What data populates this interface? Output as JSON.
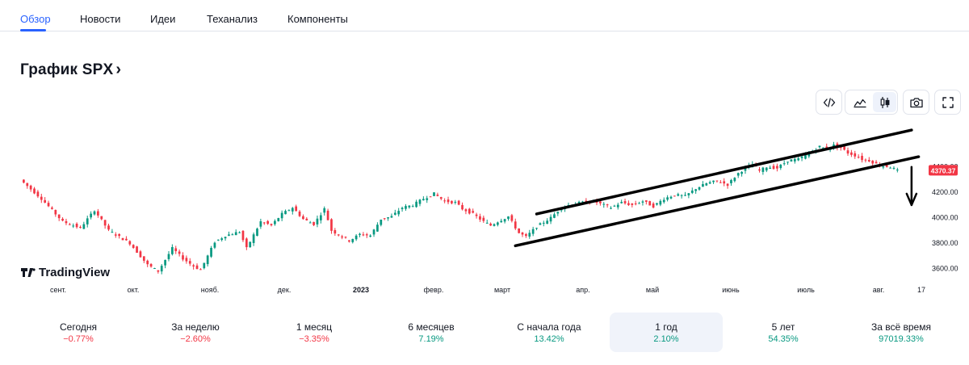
{
  "tabs": [
    {
      "label": "Обзор",
      "active": true
    },
    {
      "label": "Новости",
      "active": false
    },
    {
      "label": "Идеи",
      "active": false
    },
    {
      "label": "Теханализ",
      "active": false
    },
    {
      "label": "Компоненты",
      "active": false
    }
  ],
  "title": "График SPX",
  "title_chevron": "›",
  "toolbar": {
    "icons": [
      "embed-code-icon",
      "area-chart-icon",
      "candles-icon",
      "camera-icon",
      "fullscreen-icon"
    ],
    "active": "candles-icon"
  },
  "brand": "TradingView",
  "chart_data": {
    "type": "candlestick",
    "symbol": "SPX",
    "x_ticks": [
      "сент.",
      "окт.",
      "нояб.",
      "дек.",
      "2023",
      "февр.",
      "март",
      "апр.",
      "май",
      "июнь",
      "июль",
      "авг.",
      "17"
    ],
    "y_ticks": [
      "4400.00",
      "4200.00",
      "4000.00",
      "3800.00",
      "3600.00"
    ],
    "ylim": [
      3490,
      4760
    ],
    "last_price": "4370.37",
    "last_price_value": 4370.37,
    "close_path": [
      [
        0,
        4300
      ],
      [
        6,
        4150
      ],
      [
        12,
        3970
      ],
      [
        17,
        3920
      ],
      [
        21,
        4060
      ],
      [
        25,
        3900
      ],
      [
        31,
        3800
      ],
      [
        36,
        3630
      ],
      [
        39,
        3580
      ],
      [
        43,
        3760
      ],
      [
        46,
        3680
      ],
      [
        49,
        3620
      ],
      [
        51,
        3590
      ],
      [
        55,
        3810
      ],
      [
        58,
        3860
      ],
      [
        62,
        3890
      ],
      [
        64,
        3760
      ],
      [
        68,
        3970
      ],
      [
        71,
        3940
      ],
      [
        74,
        4030
      ],
      [
        77,
        4080
      ],
      [
        80,
        3990
      ],
      [
        83,
        3950
      ],
      [
        86,
        4070
      ],
      [
        88,
        3900
      ],
      [
        91,
        3850
      ],
      [
        93,
        3820
      ],
      [
        96,
        3870
      ],
      [
        99,
        3860
      ],
      [
        102,
        3990
      ],
      [
        105,
        4010
      ],
      [
        108,
        4080
      ],
      [
        111,
        4100
      ],
      [
        114,
        4150
      ],
      [
        117,
        4190
      ],
      [
        120,
        4130
      ],
      [
        123,
        4120
      ],
      [
        125,
        4070
      ],
      [
        128,
        4030
      ],
      [
        130,
        3990
      ],
      [
        131,
        3970
      ],
      [
        133,
        3940
      ],
      [
        135,
        3970
      ],
      [
        138,
        4010
      ],
      [
        141,
        3880
      ],
      [
        143,
        3850
      ],
      [
        146,
        3930
      ],
      [
        150,
        4000
      ],
      [
        153,
        4080
      ],
      [
        156,
        4110
      ],
      [
        159,
        4120
      ],
      [
        162,
        4130
      ],
      [
        164,
        4110
      ],
      [
        167,
        4080
      ],
      [
        170,
        4120
      ],
      [
        173,
        4100
      ],
      [
        176,
        4130
      ],
      [
        179,
        4090
      ],
      [
        182,
        4150
      ],
      [
        185,
        4180
      ],
      [
        188,
        4170
      ],
      [
        191,
        4230
      ],
      [
        194,
        4270
      ],
      [
        197,
        4290
      ],
      [
        200,
        4260
      ],
      [
        203,
        4350
      ],
      [
        205,
        4390
      ],
      [
        207,
        4420
      ],
      [
        209,
        4370
      ],
      [
        211,
        4400
      ],
      [
        214,
        4390
      ],
      [
        217,
        4450
      ],
      [
        220,
        4460
      ],
      [
        223,
        4510
      ],
      [
        226,
        4560
      ],
      [
        228,
        4540
      ],
      [
        230,
        4570
      ],
      [
        232,
        4550
      ],
      [
        234,
        4510
      ],
      [
        236,
        4490
      ],
      [
        238,
        4460
      ],
      [
        240,
        4450
      ],
      [
        243,
        4410
      ],
      [
        246,
        4400
      ],
      [
        248,
        4370
      ]
    ],
    "channel_upper": [
      [
        146,
        4030
      ],
      [
        252,
        4690
      ]
    ],
    "channel_lower": [
      [
        140,
        3780
      ],
      [
        254,
        4480
      ]
    ],
    "arrow": {
      "from": [
        252,
        4400
      ],
      "to": [
        252,
        4100
      ]
    }
  },
  "stats": [
    {
      "label": "Сегодня",
      "value": "−0.77%",
      "trend": "neg",
      "active": false
    },
    {
      "label": "За неделю",
      "value": "−2.60%",
      "trend": "neg",
      "active": false
    },
    {
      "label": "1 месяц",
      "value": "−3.35%",
      "trend": "neg",
      "active": false
    },
    {
      "label": "6 месяцев",
      "value": "7.19%",
      "trend": "pos",
      "active": false
    },
    {
      "label": "С начала года",
      "value": "13.42%",
      "trend": "pos",
      "active": false
    },
    {
      "label": "1 год",
      "value": "2.10%",
      "trend": "pos",
      "active": true
    },
    {
      "label": "5 лет",
      "value": "54.35%",
      "trend": "pos",
      "active": false
    },
    {
      "label": "За всё время",
      "value": "97019.33%",
      "trend": "pos",
      "active": false
    }
  ]
}
